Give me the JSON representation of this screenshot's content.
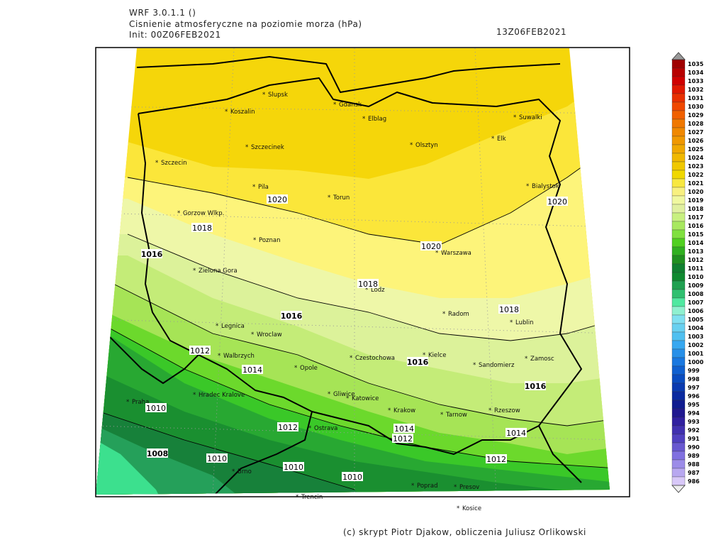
{
  "header": {
    "model": "WRF 3.0.1.1 ()",
    "title": "Cisnienie atmosferyczne na poziomie morza (hPa)",
    "init": "Init: 00Z06FEB2021",
    "valid": "13Z06FEB2021"
  },
  "map": {
    "cities": [
      "Slupsk",
      "Koszalin",
      "Gdansk",
      "Elblag",
      "Suwalki",
      "Elk",
      "Olsztyn",
      "Szczecinek",
      "Szczecin",
      "Pila",
      "Torun",
      "Bialystok",
      "Gorzow Wlkp.",
      "Poznan",
      "Warszawa",
      "Zielona Gora",
      "Lodz",
      "Radom",
      "Lublin",
      "Legnica",
      "Wroclaw",
      "Walbrzych",
      "Czestochowa",
      "Kielce",
      "Sandomierz",
      "Zamosc",
      "Opole",
      "Hradec Kralove",
      "Gliwice",
      "Katowice",
      "Praha",
      "Krakow",
      "Tarnow",
      "Rzeszow",
      "Ostrava",
      "Brno",
      "Poprad",
      "Presov",
      "Kosice",
      "Trencin"
    ],
    "isobar_labels": [
      1020,
      1020,
      1020,
      1018,
      1016,
      1018,
      1016,
      1018,
      1012,
      1014,
      1016,
      1016,
      1010,
      1012,
      1014,
      1012,
      1014,
      1008,
      1010,
      1012,
      1010,
      1010
    ]
  },
  "colorbar": {
    "levels": [
      1035,
      1034,
      1033,
      1032,
      1031,
      1030,
      1029,
      1028,
      1027,
      1026,
      1025,
      1024,
      1023,
      1022,
      1021,
      1020,
      1019,
      1018,
      1017,
      1016,
      1015,
      1014,
      1013,
      1012,
      1011,
      1010,
      1009,
      1008,
      1007,
      1006,
      1005,
      1004,
      1003,
      1002,
      1001,
      1000,
      999,
      998,
      997,
      996,
      995,
      994,
      993,
      992,
      991,
      990,
      989,
      988,
      987,
      986
    ],
    "colors": [
      "#a00000",
      "#b80000",
      "#d00000",
      "#e01800",
      "#e83000",
      "#f04800",
      "#f06000",
      "#f07800",
      "#f08800",
      "#f09800",
      "#f0a800",
      "#f0b800",
      "#f0c800",
      "#f0d800",
      "#f8e840",
      "#f8f080",
      "#f0f8a0",
      "#e0f0a0",
      "#c8f080",
      "#a8e860",
      "#80e040",
      "#50d020",
      "#30b020",
      "#209020",
      "#108030",
      "#108a30",
      "#20a050",
      "#30c070",
      "#50e8a0",
      "#90f0d0",
      "#80e0f0",
      "#68d0f0",
      "#50c0f0",
      "#38a8f0",
      "#2890e8",
      "#1a78e0",
      "#1060d0",
      "#0a4cc0",
      "#0a3ab0",
      "#0a2aa0",
      "#101c90",
      "#201890",
      "#3020a0",
      "#4030b0",
      "#5040c0",
      "#6858d0",
      "#8070e0",
      "#9c8ce8",
      "#b8a8f0",
      "#d8c8f8"
    ]
  },
  "footer": "(c) skrypt Piotr Djakow, obliczenia Juliusz Orlikowski"
}
